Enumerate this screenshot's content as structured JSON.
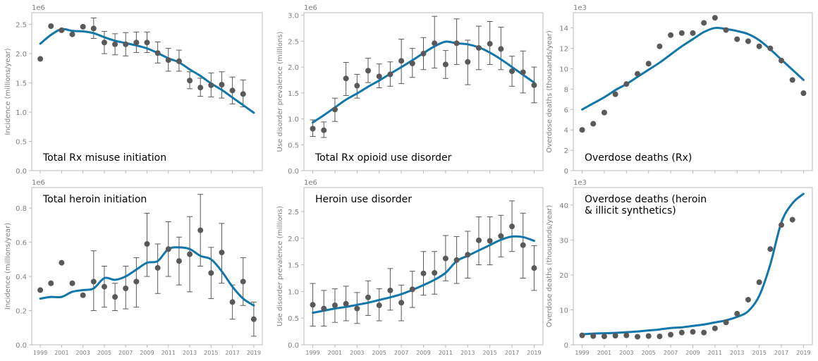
{
  "figure": {
    "colors": {
      "line": "#1177AA",
      "points": "#595959",
      "errorbars": "#595959",
      "axes": "#bbbbbb",
      "text": "#808080",
      "title": "#000000"
    }
  },
  "chart_data": [
    {
      "type": "line",
      "panel_label": "Total Rx misuse initiation",
      "ylabel": "Incidence (millions/year)",
      "scale_label": "1e6",
      "ylim": [
        0,
        2.7
      ],
      "yticks": [
        "0.0",
        "0.5",
        "1.0",
        "1.5",
        "2.0",
        "2.5"
      ],
      "ytick_values": [
        0,
        0.5,
        1.0,
        1.5,
        2.0,
        2.5
      ],
      "xlim": [
        1998.2,
        2019.8
      ],
      "xticks": [],
      "title_position": "bottom-left",
      "observed": {
        "x": [
          1999,
          2000,
          2001,
          2002,
          2003,
          2004,
          2005,
          2006,
          2007,
          2008,
          2009,
          2010,
          2011,
          2012,
          2013,
          2014,
          2015,
          2016,
          2017,
          2018
        ],
        "y": [
          1.91,
          2.47,
          2.4,
          2.33,
          2.46,
          2.43,
          2.19,
          2.16,
          2.16,
          2.19,
          2.19,
          2.01,
          1.89,
          1.87,
          1.54,
          1.42,
          1.46,
          1.47,
          1.37,
          1.31
        ],
        "err_low": [
          null,
          null,
          null,
          null,
          null,
          2.26,
          2.0,
          1.98,
          1.96,
          2.02,
          2.02,
          1.84,
          1.7,
          1.7,
          1.4,
          1.27,
          1.26,
          1.24,
          1.14,
          1.09
        ],
        "err_high": [
          null,
          null,
          null,
          null,
          null,
          2.61,
          2.38,
          2.34,
          2.36,
          2.37,
          2.37,
          2.2,
          2.09,
          2.06,
          1.69,
          1.58,
          1.67,
          1.69,
          1.6,
          1.55
        ]
      },
      "model": {
        "x": [
          1999,
          2000,
          2001,
          2002,
          2003,
          2004,
          2005,
          2006,
          2007,
          2008,
          2009,
          2010,
          2011,
          2012,
          2013,
          2014,
          2015,
          2016,
          2017,
          2018,
          2019
        ],
        "y": [
          2.17,
          2.32,
          2.42,
          2.39,
          2.38,
          2.35,
          2.28,
          2.22,
          2.18,
          2.14,
          2.09,
          2.01,
          1.92,
          1.85,
          1.73,
          1.62,
          1.49,
          1.38,
          1.25,
          1.12,
          0.99
        ]
      }
    },
    {
      "type": "line",
      "panel_label": "Total Rx opioid use disorder",
      "ylabel": "Use disorder prevalence (millions)",
      "scale_label": "1e6",
      "ylim": [
        0,
        3.05
      ],
      "yticks": [
        "0.0",
        "0.5",
        "1.0",
        "1.5",
        "2.0",
        "2.5",
        "3.0"
      ],
      "ytick_values": [
        0,
        0.5,
        1.0,
        1.5,
        2.0,
        2.5,
        3.0
      ],
      "xlim": [
        1998.2,
        2019.8
      ],
      "xticks": [],
      "title_position": "bottom-left",
      "observed": {
        "x": [
          1999,
          2000,
          2001,
          2002,
          2003,
          2004,
          2005,
          2006,
          2007,
          2008,
          2009,
          2010,
          2011,
          2012,
          2013,
          2014,
          2015,
          2016,
          2017,
          2018,
          2019
        ],
        "y": [
          0.81,
          0.78,
          1.18,
          1.78,
          1.64,
          1.93,
          1.82,
          1.86,
          2.12,
          2.07,
          2.26,
          2.46,
          2.05,
          2.46,
          2.1,
          2.37,
          2.45,
          2.35,
          1.92,
          1.9,
          1.65
        ],
        "err_low": [
          0.66,
          0.64,
          0.95,
          1.45,
          1.4,
          1.7,
          1.6,
          1.63,
          1.68,
          1.8,
          1.95,
          1.98,
          1.78,
          2.05,
          1.66,
          1.95,
          2.05,
          1.95,
          1.63,
          1.5,
          1.31
        ],
        "err_high": [
          0.98,
          0.94,
          1.4,
          2.09,
          1.86,
          2.17,
          2.06,
          2.1,
          2.54,
          2.36,
          2.57,
          2.98,
          2.32,
          2.93,
          2.52,
          2.79,
          2.88,
          2.77,
          2.21,
          2.31,
          2.0
        ]
      },
      "model": {
        "x": [
          1999,
          2000,
          2001,
          2002,
          2003,
          2004,
          2005,
          2006,
          2007,
          2008,
          2009,
          2010,
          2011,
          2012,
          2013,
          2014,
          2015,
          2016,
          2017,
          2018,
          2019
        ],
        "y": [
          0.93,
          1.07,
          1.22,
          1.37,
          1.49,
          1.62,
          1.74,
          1.87,
          2.0,
          2.13,
          2.27,
          2.4,
          2.49,
          2.46,
          2.44,
          2.38,
          2.28,
          2.15,
          2.0,
          1.85,
          1.7
        ]
      }
    },
    {
      "type": "scatter",
      "panel_label": "Overdose deaths (Rx)",
      "ylabel": "Overdose deaths (thousands/year)",
      "scale_label": "1e3",
      "ylim": [
        0,
        15.5
      ],
      "yticks": [
        "0",
        "2",
        "4",
        "6",
        "8",
        "10",
        "12",
        "14"
      ],
      "ytick_values": [
        0,
        2,
        4,
        6,
        8,
        10,
        12,
        14
      ],
      "xlim": [
        1998.2,
        2019.8
      ],
      "xticks": [],
      "title_position": "bottom-left",
      "observed": {
        "x": [
          1999,
          2000,
          2001,
          2002,
          2003,
          2004,
          2005,
          2006,
          2007,
          2008,
          2009,
          2010,
          2011,
          2012,
          2013,
          2014,
          2015,
          2016,
          2017,
          2018,
          2019
        ],
        "y": [
          4.0,
          4.6,
          5.7,
          7.5,
          8.5,
          9.5,
          10.5,
          12.2,
          13.3,
          13.5,
          13.5,
          14.5,
          15.0,
          13.8,
          12.9,
          12.7,
          12.2,
          12.0,
          10.8,
          8.9,
          7.6
        ]
      },
      "model": {
        "x": [
          1999,
          2000,
          2001,
          2002,
          2003,
          2004,
          2005,
          2006,
          2007,
          2008,
          2009,
          2010,
          2011,
          2012,
          2013,
          2014,
          2015,
          2016,
          2017,
          2018,
          2019
        ],
        "y": [
          6.0,
          6.6,
          7.2,
          7.9,
          8.5,
          9.2,
          9.9,
          10.6,
          11.4,
          12.2,
          12.9,
          13.6,
          14.0,
          13.9,
          13.7,
          13.4,
          12.8,
          11.9,
          10.9,
          9.9,
          8.9
        ]
      }
    },
    {
      "type": "line",
      "panel_label": "Total heroin initiation",
      "ylabel": "Incidence (millions/year)",
      "scale_label": "1e6",
      "ylim": [
        0,
        0.92
      ],
      "yticks": [
        "0.0",
        "0.2",
        "0.4",
        "0.6",
        "0.8"
      ],
      "ytick_values": [
        0,
        0.2,
        0.4,
        0.6,
        0.8
      ],
      "xlim": [
        1998.2,
        2019.8
      ],
      "xticks": [
        "1999",
        "2001",
        "2003",
        "2005",
        "2007",
        "2009",
        "2011",
        "2013",
        "2015",
        "2017",
        "2019"
      ],
      "title_position": "top-left",
      "observed": {
        "x": [
          1999,
          2000,
          2001,
          2002,
          2003,
          2004,
          2005,
          2006,
          2007,
          2008,
          2009,
          2010,
          2011,
          2012,
          2013,
          2014,
          2015,
          2016,
          2017,
          2018,
          2019
        ],
        "y": [
          0.32,
          0.36,
          0.48,
          0.36,
          0.29,
          0.37,
          0.34,
          0.28,
          0.33,
          0.37,
          0.59,
          0.45,
          0.56,
          0.49,
          0.53,
          0.67,
          0.42,
          0.54,
          0.25,
          0.37,
          0.15
        ],
        "err_low": [
          null,
          null,
          null,
          null,
          null,
          0.2,
          0.22,
          0.2,
          0.21,
          0.22,
          0.4,
          0.3,
          0.4,
          0.35,
          0.31,
          0.46,
          0.27,
          0.36,
          0.15,
          0.23,
          0.05
        ],
        "err_high": [
          null,
          null,
          null,
          null,
          null,
          0.55,
          0.46,
          0.36,
          0.46,
          0.51,
          0.77,
          0.59,
          0.72,
          0.63,
          0.75,
          0.88,
          0.57,
          0.71,
          0.35,
          0.51,
          0.25
        ]
      },
      "model": {
        "x": [
          1999,
          2000,
          2001,
          2002,
          2003,
          2004,
          2005,
          2006,
          2007,
          2008,
          2009,
          2010,
          2011,
          2012,
          2013,
          2014,
          2015,
          2016,
          2017,
          2018,
          2019
        ],
        "y": [
          0.27,
          0.28,
          0.28,
          0.31,
          0.32,
          0.33,
          0.39,
          0.38,
          0.4,
          0.44,
          0.48,
          0.49,
          0.56,
          0.57,
          0.56,
          0.52,
          0.5,
          0.43,
          0.34,
          0.27,
          0.23
        ]
      }
    },
    {
      "type": "line",
      "panel_label": "Heroin use disorder",
      "ylabel": "Use disorder prevalence (millions)",
      "scale_label": "1e6",
      "ylim": [
        0,
        2.95
      ],
      "yticks": [
        "0.0",
        "0.5",
        "1.0",
        "1.5",
        "2.0",
        "2.5"
      ],
      "ytick_values": [
        0,
        0.5,
        1.0,
        1.5,
        2.0,
        2.5
      ],
      "xlim": [
        1998.2,
        2019.8
      ],
      "xticks": [
        "1999",
        "2001",
        "2003",
        "2005",
        "2007",
        "2009",
        "2011",
        "2013",
        "2015",
        "2017",
        "2019"
      ],
      "title_position": "top-left",
      "observed": {
        "x": [
          1999,
          2000,
          2001,
          2002,
          2003,
          2004,
          2005,
          2006,
          2007,
          2008,
          2009,
          2010,
          2011,
          2012,
          2013,
          2014,
          2015,
          2016,
          2017,
          2018,
          2019
        ],
        "y": [
          0.75,
          0.68,
          0.74,
          0.77,
          0.68,
          0.89,
          0.74,
          1.02,
          0.79,
          1.04,
          1.34,
          1.35,
          1.62,
          1.59,
          1.69,
          1.96,
          1.95,
          2.04,
          2.22,
          1.87,
          1.44
        ],
        "err_low": [
          0.35,
          0.35,
          0.42,
          0.45,
          0.4,
          0.55,
          0.45,
          0.65,
          0.45,
          0.7,
          0.93,
          0.95,
          1.2,
          1.15,
          1.25,
          1.5,
          1.5,
          1.65,
          1.75,
          1.25,
          1.02
        ],
        "err_high": [
          1.15,
          1.02,
          1.05,
          1.1,
          0.98,
          1.2,
          1.05,
          1.43,
          1.12,
          1.38,
          1.75,
          1.75,
          2.05,
          2.03,
          2.13,
          2.4,
          2.4,
          2.43,
          2.7,
          2.47,
          1.86
        ]
      },
      "model": {
        "x": [
          1999,
          2000,
          2001,
          2002,
          2003,
          2004,
          2005,
          2006,
          2007,
          2008,
          2009,
          2010,
          2011,
          2012,
          2013,
          2014,
          2015,
          2016,
          2017,
          2018,
          2019
        ],
        "y": [
          0.6,
          0.64,
          0.68,
          0.71,
          0.75,
          0.79,
          0.84,
          0.89,
          0.95,
          1.03,
          1.12,
          1.22,
          1.35,
          1.57,
          1.67,
          1.77,
          1.87,
          1.97,
          2.03,
          2.02,
          1.95
        ]
      }
    },
    {
      "type": "scatter",
      "panel_label": "Overdose deaths (heroin\n& illicit synthetics)",
      "ylabel": "Overdose deaths (thousands/year)",
      "scale_label": "1e3",
      "ylim": [
        0,
        45
      ],
      "yticks": [
        "0",
        "10",
        "20",
        "30",
        "40"
      ],
      "ytick_values": [
        0,
        10,
        20,
        30,
        40
      ],
      "xlim": [
        1998.2,
        2019.8
      ],
      "xticks": [
        "1999",
        "2001",
        "2003",
        "2005",
        "2007",
        "2009",
        "2011",
        "2013",
        "2015",
        "2017",
        "2019"
      ],
      "title_position": "top-left",
      "observed": {
        "x": [
          1999,
          2000,
          2001,
          2002,
          2003,
          2004,
          2005,
          2006,
          2007,
          2008,
          2009,
          2010,
          2011,
          2012,
          2013,
          2014,
          2015,
          2016,
          2017,
          2018
        ],
        "y": [
          2.7,
          2.5,
          2.4,
          2.6,
          2.7,
          2.3,
          2.5,
          2.4,
          2.9,
          3.5,
          3.7,
          3.5,
          4.7,
          6.4,
          8.9,
          12.9,
          17.9,
          27.4,
          34.3,
          35.8
        ]
      },
      "model": {
        "x": [
          1999,
          2000,
          2001,
          2002,
          2003,
          2004,
          2005,
          2006,
          2007,
          2008,
          2009,
          2010,
          2011,
          2012,
          2013,
          2014,
          2015,
          2016,
          2017,
          2018,
          2019
        ],
        "y": [
          3.0,
          3.2,
          3.3,
          3.4,
          3.6,
          3.8,
          4.1,
          4.4,
          4.8,
          5.0,
          5.4,
          5.8,
          6.4,
          7.0,
          8.0,
          9.6,
          14.0,
          23.0,
          35.0,
          40.5,
          43.2
        ]
      }
    }
  ]
}
